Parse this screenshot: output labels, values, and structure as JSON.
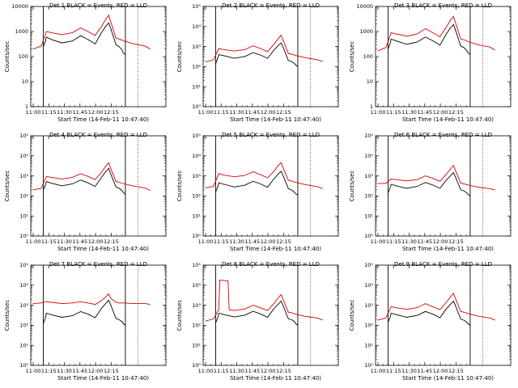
{
  "chart_data": [
    {
      "type": "line",
      "title": "Det 1  BLACK = Events, RED = LLD",
      "ylabel": "Counts/sec",
      "xlabel": "Start Time (14-Feb-11 10:47:40)",
      "yscale": "log",
      "ylim": [
        1,
        10000
      ],
      "ytick_labels": [
        "1",
        "10",
        "100",
        "1000",
        "10000"
      ],
      "xtick_labels": [
        "11:00",
        "11:15",
        "11:30",
        "11:45",
        "12:00",
        "12:15"
      ],
      "xlim_minutes": [
        10,
        140
      ],
      "series": [
        {
          "name": "BLACK",
          "color": "#000000",
          "x": [
            22,
            24,
            25,
            30,
            40,
            50,
            58,
            65,
            72,
            78,
            82,
            85,
            87,
            92,
            95,
            98,
            99,
            101
          ],
          "y": [
            250,
            400,
            600,
            480,
            350,
            420,
            680,
            480,
            320,
            900,
            1600,
            2200,
            1300,
            300,
            250,
            180,
            140,
            120
          ]
        },
        {
          "name": "RED",
          "color": "#d40000",
          "x": [
            12,
            20,
            25,
            30,
            40,
            50,
            58,
            65,
            72,
            78,
            82,
            85,
            87,
            92,
            95,
            100,
            108,
            120,
            125
          ],
          "y": [
            200,
            260,
            1000,
            900,
            750,
            900,
            1400,
            1000,
            700,
            1600,
            3000,
            4500,
            2400,
            550,
            500,
            420,
            330,
            260,
            200
          ]
        }
      ],
      "vlines_minutes": [
        22,
        101,
        113
      ]
    },
    {
      "type": "line",
      "title": "Det 2  BLACK = Events, RED = LLD",
      "ylabel": "Counts/sec",
      "xlabel": "Start Time (14-Feb-11 10:47:40)",
      "yscale": "log",
      "ylim": [
        1,
        100000
      ],
      "ytick_labels": [
        "10⁰",
        "10¹",
        "10²",
        "10³",
        "10⁴",
        "10⁵"
      ],
      "xtick_labels": [
        "11:00",
        "11:15",
        "11:30",
        "11:45",
        "12:00",
        "12:15"
      ],
      "xlim_minutes": [
        10,
        140
      ],
      "series": [
        {
          "name": "BLACK",
          "color": "#000000",
          "x": [
            22,
            24,
            25,
            30,
            40,
            50,
            58,
            65,
            72,
            78,
            82,
            85,
            87,
            92,
            95,
            98,
            99,
            101
          ],
          "y": [
            140,
            260,
            400,
            350,
            260,
            320,
            500,
            380,
            260,
            650,
            1100,
            1500,
            900,
            200,
            180,
            140,
            120,
            100
          ]
        },
        {
          "name": "RED",
          "color": "#d40000",
          "x": [
            12,
            20,
            25,
            30,
            40,
            50,
            58,
            65,
            72,
            78,
            82,
            85,
            87,
            92,
            95,
            100,
            108,
            120,
            125
          ],
          "y": [
            170,
            220,
            800,
            700,
            600,
            700,
            1100,
            800,
            560,
            1300,
            2400,
            3700,
            2000,
            450,
            420,
            350,
            280,
            220,
            180
          ]
        }
      ],
      "vlines_minutes": [
        22,
        101,
        113
      ]
    },
    {
      "type": "line",
      "title": "Det 3  BLACK = Events, RED = LLD",
      "ylabel": "Counts/sec",
      "xlabel": "Start Time (14-Feb-11 10:47:40)",
      "yscale": "log",
      "ylim": [
        1,
        10000
      ],
      "ytick_labels": [
        "1",
        "10",
        "100",
        "1000",
        "10000"
      ],
      "xtick_labels": [
        "11:00",
        "11:15",
        "11:30",
        "11:45",
        "12:00",
        "12:15"
      ],
      "xlim_minutes": [
        10,
        140
      ],
      "series": [
        {
          "name": "BLACK",
          "color": "#000000",
          "x": [
            22,
            24,
            25,
            30,
            40,
            50,
            58,
            65,
            72,
            78,
            82,
            85,
            87,
            92,
            95,
            98,
            99,
            101
          ],
          "y": [
            200,
            330,
            500,
            420,
            310,
            380,
            600,
            430,
            290,
            800,
            1400,
            1900,
            1100,
            260,
            230,
            170,
            140,
            120
          ]
        },
        {
          "name": "RED",
          "color": "#d40000",
          "x": [
            12,
            20,
            25,
            30,
            40,
            50,
            58,
            65,
            72,
            78,
            82,
            85,
            87,
            92,
            95,
            100,
            108,
            120,
            125
          ],
          "y": [
            170,
            230,
            900,
            800,
            650,
            800,
            1300,
            900,
            620,
            1500,
            2800,
            4000,
            2200,
            500,
            470,
            380,
            300,
            240,
            180
          ]
        }
      ],
      "vlines_minutes": [
        22,
        101,
        113
      ]
    },
    {
      "type": "line",
      "title": "Det 4  BLACK = Events, RED = LLD",
      "ylabel": "Counts/sec",
      "xlabel": "Start Time (14-Feb-11 10:47:40)",
      "yscale": "log",
      "ylim": [
        1,
        100000
      ],
      "ytick_labels": [
        "10⁰",
        "10¹",
        "10²",
        "10³",
        "10⁴",
        "10⁵"
      ],
      "xtick_labels": [
        "11:00",
        "11:15",
        "11:30",
        "11:45",
        "12:00",
        "12:15"
      ],
      "xlim_minutes": [
        10,
        140
      ],
      "series": [
        {
          "name": "BLACK",
          "color": "#000000",
          "x": [
            22,
            24,
            25,
            30,
            40,
            50,
            58,
            65,
            72,
            78,
            82,
            85,
            87,
            92,
            95,
            98,
            99,
            101
          ],
          "y": [
            200,
            330,
            520,
            430,
            320,
            400,
            620,
            450,
            300,
            850,
            1600,
            2400,
            1200,
            280,
            240,
            180,
            150,
            120
          ]
        },
        {
          "name": "RED",
          "color": "#d40000",
          "x": [
            12,
            20,
            25,
            30,
            40,
            50,
            58,
            65,
            72,
            78,
            82,
            85,
            87,
            92,
            95,
            100,
            108,
            120,
            125
          ],
          "y": [
            200,
            240,
            950,
            850,
            700,
            850,
            1300,
            950,
            650,
            1500,
            3000,
            4500,
            2300,
            520,
            480,
            400,
            320,
            250,
            190
          ]
        }
      ],
      "vlines_minutes": [
        22,
        101,
        113
      ]
    },
    {
      "type": "line",
      "title": "Det 5  BLACK = Events, RED = LLD",
      "ylabel": "Counts/sec",
      "xlabel": "Start Time (14-Feb-11 10:47:40)",
      "yscale": "log",
      "ylim": [
        1,
        100000
      ],
      "ytick_labels": [
        "10⁰",
        "10¹",
        "10²",
        "10³",
        "10⁴",
        "10⁵"
      ],
      "xtick_labels": [
        "11:00",
        "11:15",
        "11:30",
        "11:45",
        "12:00",
        "12:15"
      ],
      "xlim_minutes": [
        10,
        140
      ],
      "series": [
        {
          "name": "BLACK",
          "color": "#000000",
          "x": [
            22,
            24,
            25,
            30,
            40,
            50,
            58,
            65,
            72,
            78,
            82,
            85,
            87,
            92,
            95,
            98,
            99,
            101
          ],
          "y": [
            160,
            280,
            450,
            380,
            280,
            340,
            540,
            400,
            270,
            700,
            1200,
            1700,
            1000,
            230,
            200,
            150,
            130,
            110
          ]
        },
        {
          "name": "RED",
          "color": "#d40000",
          "x": [
            12,
            20,
            25,
            30,
            40,
            50,
            58,
            65,
            72,
            78,
            82,
            85,
            87,
            92,
            95,
            100,
            108,
            120,
            125
          ],
          "y": [
            250,
            300,
            1300,
            1100,
            900,
            1050,
            1600,
            1150,
            800,
            1700,
            3200,
            4600,
            2500,
            600,
            560,
            460,
            370,
            290,
            230
          ]
        }
      ],
      "vlines_minutes": [
        22,
        101,
        113
      ]
    },
    {
      "type": "line",
      "title": "Det 6  BLACK = Events, RED = LLD",
      "ylabel": "Counts/sec",
      "xlabel": "Start Time (14-Feb-11 10:47:40)",
      "yscale": "log",
      "ylim": [
        1,
        100000
      ],
      "ytick_labels": [
        "10⁰",
        "10¹",
        "10²",
        "10³",
        "10⁴",
        "10⁵"
      ],
      "xtick_labels": [
        "11:00",
        "11:15",
        "11:30",
        "11:45",
        "12:00",
        "12:15"
      ],
      "xlim_minutes": [
        10,
        140
      ],
      "series": [
        {
          "name": "BLACK",
          "color": "#000000",
          "x": [
            22,
            24,
            25,
            30,
            40,
            50,
            58,
            65,
            72,
            78,
            82,
            85,
            87,
            92,
            95,
            98,
            99,
            101
          ],
          "y": [
            140,
            250,
            380,
            320,
            240,
            300,
            470,
            350,
            240,
            620,
            1000,
            1450,
            850,
            200,
            180,
            140,
            120,
            100
          ]
        },
        {
          "name": "RED",
          "color": "#d40000",
          "x": [
            12,
            20,
            25,
            30,
            40,
            50,
            58,
            65,
            72,
            78,
            82,
            85,
            87,
            92,
            95,
            100,
            108,
            120,
            125
          ],
          "y": [
            420,
            420,
            700,
            650,
            560,
            650,
            1000,
            760,
            540,
            1200,
            2200,
            3300,
            1800,
            430,
            400,
            340,
            280,
            230,
            200
          ]
        }
      ],
      "vlines_minutes": [
        22,
        101,
        113
      ]
    },
    {
      "type": "line",
      "title": "Det 7  BLACK = Events, RED = LLD",
      "ylabel": "Counts/sec",
      "xlabel": "Start Time (14-Feb-11 10:47:40)",
      "yscale": "log",
      "ylim": [
        1,
        100000
      ],
      "ytick_labels": [
        "10⁰",
        "10¹",
        "10²",
        "10³",
        "10⁴",
        "10⁵"
      ],
      "xtick_labels": [
        "11:00",
        "11:15",
        "11:30",
        "11:45",
        "12:00",
        "12:15"
      ],
      "xlim_minutes": [
        10,
        140
      ],
      "series": [
        {
          "name": "BLACK",
          "color": "#000000",
          "x": [
            22,
            24,
            25,
            30,
            40,
            50,
            58,
            65,
            72,
            78,
            82,
            85,
            87,
            92,
            95,
            98,
            99,
            101
          ],
          "y": [
            120,
            220,
            400,
            330,
            250,
            300,
            480,
            360,
            240,
            700,
            1200,
            1800,
            1000,
            220,
            190,
            150,
            120,
            100
          ]
        },
        {
          "name": "RED",
          "color": "#d40000",
          "x": [
            12,
            20,
            25,
            30,
            40,
            50,
            58,
            65,
            72,
            78,
            82,
            85,
            87,
            92,
            95,
            100,
            108,
            120,
            125
          ],
          "y": [
            1200,
            1300,
            1500,
            1400,
            1200,
            1300,
            1500,
            1300,
            1100,
            1700,
            2600,
            3600,
            2200,
            1400,
            1300,
            1300,
            1200,
            1200,
            1100
          ]
        }
      ],
      "vlines_minutes": [
        22,
        101,
        113
      ]
    },
    {
      "type": "line",
      "title": "Det 8  BLACK = Events, RED = LLD",
      "ylabel": "Counts/sec",
      "xlabel": "Start Time (14-Feb-11 10:47:40)",
      "yscale": "log",
      "ylim": [
        1,
        100000
      ],
      "ytick_labels": [
        "10⁰",
        "10¹",
        "10²",
        "10³",
        "10⁴",
        "10⁵"
      ],
      "xtick_labels": [
        "11:00",
        "11:15",
        "11:30",
        "11:45",
        "12:00",
        "12:15"
      ],
      "xlim_minutes": [
        10,
        140
      ],
      "series": [
        {
          "name": "BLACK",
          "color": "#000000",
          "x": [
            22,
            24,
            25,
            30,
            40,
            50,
            58,
            65,
            72,
            78,
            82,
            85,
            87,
            92,
            95,
            98,
            99,
            101
          ],
          "y": [
            130,
            240,
            400,
            340,
            260,
            320,
            500,
            370,
            250,
            680,
            1100,
            1600,
            950,
            210,
            190,
            150,
            120,
            100
          ]
        },
        {
          "name": "RED",
          "color": "#d40000",
          "x": [
            12,
            20,
            25,
            26,
            30,
            34,
            35,
            40,
            50,
            58,
            65,
            72,
            78,
            82,
            85,
            87,
            92,
            95,
            100,
            108,
            120,
            125
          ],
          "y": [
            160,
            210,
            600,
            18000,
            17000,
            16000,
            600,
            540,
            650,
            1000,
            750,
            540,
            1200,
            2300,
            3400,
            1900,
            450,
            420,
            350,
            280,
            230,
            180
          ]
        }
      ],
      "vlines_minutes": [
        22,
        101,
        113
      ]
    },
    {
      "type": "line",
      "title": "Det 9  BLACK = Events, RED = LLD",
      "ylabel": "Counts/sec",
      "xlabel": "Start Time (14-Feb-11 10:47:40)",
      "yscale": "log",
      "ylim": [
        1,
        100000
      ],
      "ytick_labels": [
        "10⁰",
        "10¹",
        "10²",
        "10³",
        "10⁴",
        "10⁵"
      ],
      "xtick_labels": [
        "11:00",
        "11:15",
        "11:30",
        "11:45",
        "12:00",
        "12:15"
      ],
      "xlim_minutes": [
        10,
        140
      ],
      "series": [
        {
          "name": "BLACK",
          "color": "#000000",
          "x": [
            22,
            24,
            25,
            30,
            40,
            50,
            58,
            65,
            72,
            78,
            82,
            85,
            87,
            92,
            95,
            98,
            99,
            101
          ],
          "y": [
            140,
            250,
            400,
            340,
            250,
            310,
            490,
            360,
            240,
            650,
            1100,
            1600,
            900,
            200,
            180,
            140,
            120,
            100
          ]
        },
        {
          "name": "RED",
          "color": "#d40000",
          "x": [
            12,
            20,
            25,
            30,
            40,
            50,
            58,
            65,
            72,
            78,
            82,
            85,
            87,
            92,
            95,
            100,
            108,
            120,
            125
          ],
          "y": [
            180,
            230,
            850,
            750,
            620,
            760,
            1200,
            850,
            600,
            1400,
            2600,
            3900,
            2100,
            480,
            450,
            370,
            290,
            230,
            180
          ]
        }
      ],
      "vlines_minutes": [
        22,
        101,
        113
      ]
    }
  ]
}
